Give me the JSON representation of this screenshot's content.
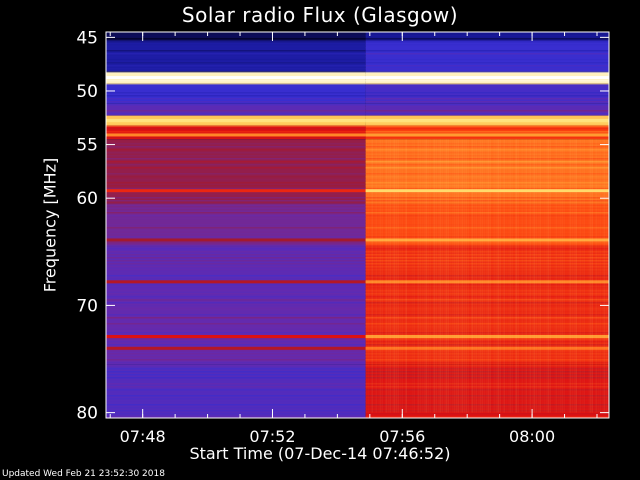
{
  "chart_data": {
    "type": "heatmap",
    "title": "Solar radio Flux (Glasgow)",
    "ylabel": "Frequency [MHz]",
    "xlabel": "Start Time (07-Dec-14 07:46:52)",
    "yticks": [
      "45",
      "50",
      "55",
      "60",
      "70",
      "80"
    ],
    "ytick_values": [
      45,
      50,
      55,
      60,
      70,
      80
    ],
    "ylim": [
      44.5,
      80.5
    ],
    "xticks": [
      "07:48",
      "07:52",
      "07:56",
      "08:00"
    ],
    "xtick_minutes": [
      1.13,
      5.13,
      9.13,
      13.13
    ],
    "xlim_minutes": [
      0,
      15.5
    ],
    "burst_onset_minutes": 8.0,
    "colormap": [
      "#000018",
      "#1a1aa0",
      "#3a2ed0",
      "#6a2aa8",
      "#a01a30",
      "#e01010",
      "#ff4a10",
      "#ff9a30",
      "#ffe070",
      "#ffffff"
    ],
    "bands": [
      {
        "f_lo": 44.5,
        "f_hi": 45.3,
        "pre": 0.05,
        "post": 0.1
      },
      {
        "f_lo": 45.3,
        "f_hi": 48.2,
        "pre": 0.12,
        "post": 0.22
      },
      {
        "f_lo": 48.2,
        "f_hi": 49.3,
        "pre": 0.95,
        "post": 0.95
      },
      {
        "f_lo": 49.3,
        "f_hi": 51.2,
        "pre": 0.22,
        "post": 0.25
      },
      {
        "f_lo": 51.2,
        "f_hi": 52.3,
        "pre": 0.3,
        "post": 0.3
      },
      {
        "f_lo": 52.3,
        "f_hi": 53.2,
        "pre": 0.85,
        "post": 0.85
      },
      {
        "f_lo": 53.2,
        "f_hi": 54.5,
        "pre": 0.55,
        "post": 0.65
      },
      {
        "f_lo": 54.5,
        "f_hi": 60.5,
        "pre": 0.42,
        "post": 0.72
      },
      {
        "f_lo": 60.5,
        "f_hi": 64.5,
        "pre": 0.35,
        "post": 0.66
      },
      {
        "f_lo": 64.5,
        "f_hi": 69.5,
        "pre": 0.3,
        "post": 0.6
      },
      {
        "f_lo": 69.5,
        "f_hi": 75.5,
        "pre": 0.32,
        "post": 0.6
      },
      {
        "f_lo": 75.5,
        "f_hi": 80.5,
        "pre": 0.28,
        "post": 0.55
      }
    ],
    "lines": [
      {
        "f": 48.75,
        "pre": 1.0,
        "post": 1.0
      },
      {
        "f": 52.75,
        "pre": 0.9,
        "post": 0.9
      },
      {
        "f": 54.1,
        "pre": 0.75,
        "post": 0.78
      },
      {
        "f": 59.3,
        "pre": 0.6,
        "post": 0.88
      },
      {
        "f": 63.9,
        "pre": 0.45,
        "post": 0.8
      },
      {
        "f": 67.8,
        "pre": 0.48,
        "post": 0.75
      },
      {
        "f": 72.9,
        "pre": 0.55,
        "post": 0.78
      },
      {
        "f": 74.0,
        "pre": 0.48,
        "post": 0.72
      }
    ]
  },
  "footer": "Updated Wed Feb 21 23:52:30 2018"
}
